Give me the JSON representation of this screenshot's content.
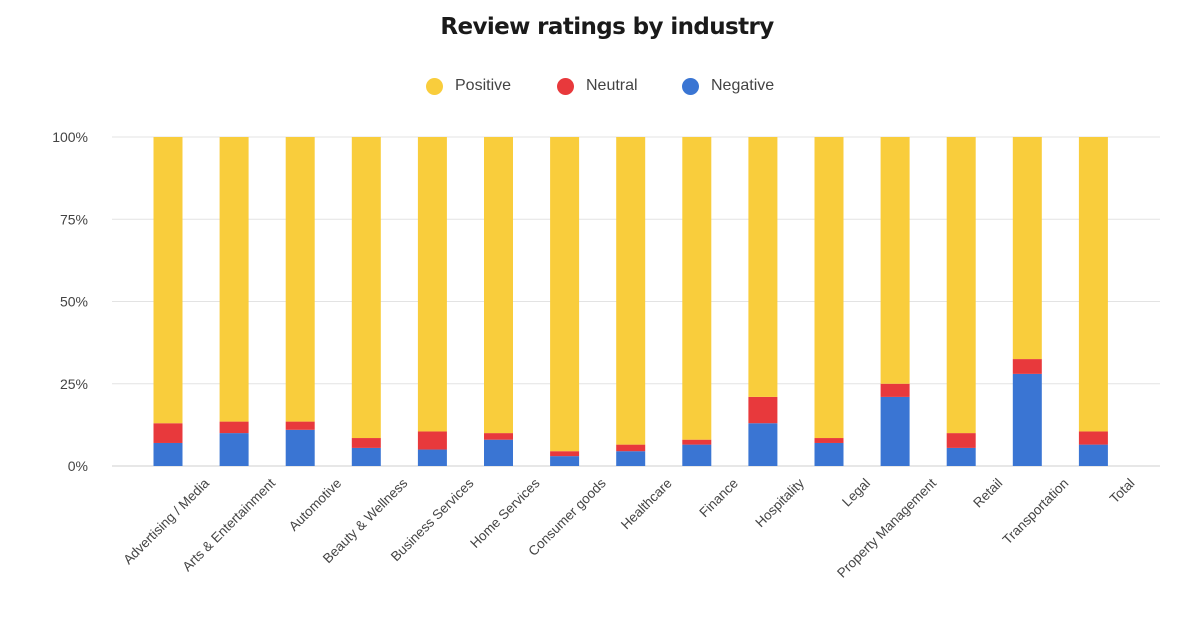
{
  "chart_data": {
    "type": "bar",
    "stacked": true,
    "title": "Review ratings by industry",
    "xlabel": "",
    "ylabel": "",
    "ylim": [
      0,
      100
    ],
    "y_ticks": [
      "0%",
      "25%",
      "50%",
      "75%",
      "100%"
    ],
    "grid": true,
    "legend_position": "top-center",
    "categories": [
      "Advertising / Media",
      "Arts & Entertainment",
      "Automotive",
      "Beauty & Wellness",
      "Business Services",
      "Home Services",
      "Consumer goods",
      "Healthcare",
      "Finance",
      "Hospitality",
      "Legal",
      "Property Management",
      "Retail",
      "Transportation",
      "Total"
    ],
    "series": [
      {
        "name": "Negative",
        "color": "#3a75d3",
        "values": [
          7,
          10,
          11,
          5.5,
          5,
          8,
          3,
          4.5,
          6.5,
          13,
          7,
          21,
          5.5,
          28,
          6.5
        ]
      },
      {
        "name": "Neutral",
        "color": "#e8393c",
        "values": [
          6,
          3.5,
          2.5,
          3,
          5.5,
          2,
          1.5,
          2,
          1.5,
          8,
          1.5,
          4,
          4.5,
          4.5,
          4
        ]
      },
      {
        "name": "Positive",
        "color": "#f9cd3c",
        "values": [
          87,
          86.5,
          86.5,
          91.5,
          89.5,
          90,
          95.5,
          93.5,
          92,
          79,
          91.5,
          75,
          90,
          67.5,
          89.5
        ]
      }
    ]
  },
  "legend": [
    {
      "label": "Positive",
      "color": "#f9cd3c"
    },
    {
      "label": "Neutral",
      "color": "#e8393c"
    },
    {
      "label": "Negative",
      "color": "#3a75d3"
    }
  ]
}
